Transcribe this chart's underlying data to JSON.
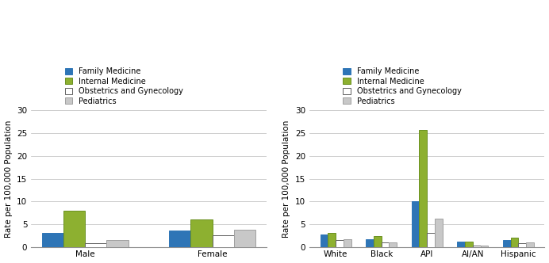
{
  "chart1": {
    "categories": [
      "Male",
      "Female"
    ],
    "series": {
      "Family Medicine": [
        3.0,
        3.5
      ],
      "Internal Medicine": [
        8.0,
        6.0
      ],
      "Obstetrics and Gynecology": [
        0.8,
        2.5
      ],
      "Pediatrics": [
        1.5,
        3.7
      ]
    }
  },
  "chart2": {
    "categories": [
      "White",
      "Black",
      "API",
      "AI/AN",
      "Hispanic"
    ],
    "series": {
      "Family Medicine": [
        2.7,
        1.6,
        10.0,
        1.2,
        1.5
      ],
      "Internal Medicine": [
        3.0,
        2.4,
        25.8,
        1.1,
        2.0
      ],
      "Obstetrics and Gynecology": [
        1.5,
        1.0,
        3.0,
        0.2,
        0.8
      ],
      "Pediatrics": [
        1.6,
        1.0,
        6.2,
        0.3,
        1.0
      ]
    }
  },
  "series_names": [
    "Family Medicine",
    "Internal Medicine",
    "Obstetrics and Gynecology",
    "Pediatrics"
  ],
  "colors": [
    "#2E75B6",
    "#8DB030",
    "#FFFFFF",
    "#C8C8C8"
  ],
  "edge_colors": [
    "#2E75B6",
    "#6A9020",
    "#606060",
    "#A0A0A0"
  ],
  "ylabel": "Rate per 100,000 Population",
  "ylim": [
    0,
    30
  ],
  "yticks": [
    0,
    5,
    10,
    15,
    20,
    25,
    30
  ],
  "background_color": "#FFFFFF",
  "grid_color": "#BBBBBB",
  "legend_fontsize": 7.0,
  "axis_fontsize": 7.5,
  "tick_fontsize": 7.5,
  "bar_width": 0.17
}
